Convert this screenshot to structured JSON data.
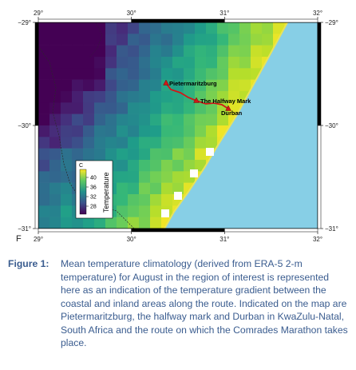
{
  "map": {
    "colors": {
      "ocean": "#87cfe6",
      "coast": "#e8e35a",
      "route": "#d01818",
      "frame": "#000000",
      "land_fill": "#ffffff"
    },
    "lon_ticks": [
      "29°",
      "30°",
      "31°",
      "32°"
    ],
    "lat_ticks": [
      "−29°",
      "−30°",
      "−31°"
    ],
    "corner_label": "F",
    "places": [
      {
        "name": "Pietermaritzburg"
      },
      {
        "name": "The Halfway Mark"
      },
      {
        "name": "Durban"
      }
    ],
    "colorbar": {
      "unit": "C",
      "title": "Temperature",
      "ticks": [
        "40",
        "36",
        "32",
        "28"
      ],
      "colormap": "viridis"
    }
  },
  "caption": {
    "label": "Figure 1:",
    "text": "Mean temperature climatology (derived from ERA-5 2-m temperature) for August in the region of interest is represented here as an indication of the temperature gradient between the coastal and inland areas along the route. Indicated on the map are Pietermaritzburg, the halfway mark and Durban in KwaZulu-Natal, South Africa and the route on which the Comrades Marathon takes place."
  }
}
